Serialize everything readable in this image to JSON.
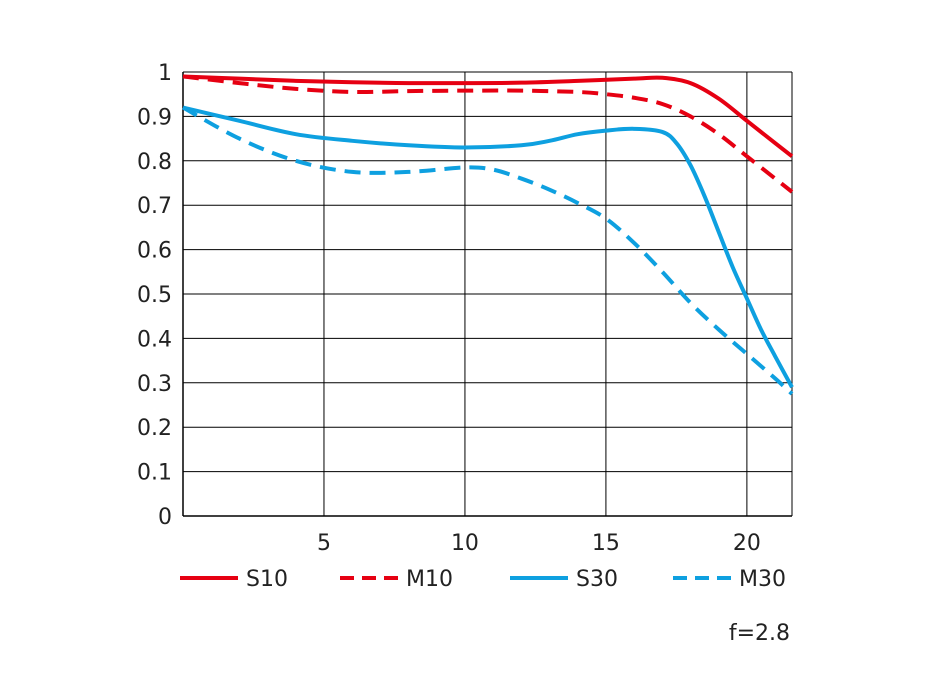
{
  "chart_data": {
    "type": "line",
    "title": "",
    "xlabel": "",
    "ylabel": "",
    "xlim": [
      0,
      21.6
    ],
    "ylim": [
      0,
      1
    ],
    "x_ticks": [
      5,
      10,
      15,
      20
    ],
    "y_ticks": [
      0,
      0.1,
      0.2,
      0.3,
      0.4,
      0.5,
      0.6,
      0.7,
      0.8,
      0.9,
      1
    ],
    "y_tick_labels": [
      "0",
      "0.1",
      "0.2",
      "0.3",
      "0.4",
      "0.5",
      "0.6",
      "0.7",
      "0.8",
      "0.9",
      "1"
    ],
    "grid": true,
    "legend_position": "bottom",
    "annotation": "f=2.8",
    "series": [
      {
        "name": "S10",
        "color": "#e60012",
        "dash": "solid",
        "points": [
          [
            0,
            0.99
          ],
          [
            2,
            0.985
          ],
          [
            4,
            0.98
          ],
          [
            6,
            0.977
          ],
          [
            8,
            0.975
          ],
          [
            10,
            0.975
          ],
          [
            12,
            0.976
          ],
          [
            14,
            0.98
          ],
          [
            16,
            0.985
          ],
          [
            17,
            0.987
          ],
          [
            18,
            0.975
          ],
          [
            19,
            0.94
          ],
          [
            20,
            0.89
          ],
          [
            21,
            0.84
          ],
          [
            21.6,
            0.81
          ]
        ]
      },
      {
        "name": "M10",
        "color": "#e60012",
        "dash": "dashed",
        "points": [
          [
            0,
            0.99
          ],
          [
            2,
            0.975
          ],
          [
            4,
            0.962
          ],
          [
            6,
            0.955
          ],
          [
            8,
            0.957
          ],
          [
            10,
            0.958
          ],
          [
            12,
            0.958
          ],
          [
            14,
            0.955
          ],
          [
            15,
            0.95
          ],
          [
            16,
            0.942
          ],
          [
            17,
            0.928
          ],
          [
            18,
            0.9
          ],
          [
            19,
            0.86
          ],
          [
            20,
            0.81
          ],
          [
            21,
            0.76
          ],
          [
            21.6,
            0.73
          ]
        ]
      },
      {
        "name": "S30",
        "color": "#0ea0e0",
        "dash": "solid",
        "points": [
          [
            0,
            0.92
          ],
          [
            2,
            0.89
          ],
          [
            4,
            0.86
          ],
          [
            6,
            0.845
          ],
          [
            8,
            0.835
          ],
          [
            10,
            0.83
          ],
          [
            12,
            0.835
          ],
          [
            13,
            0.845
          ],
          [
            14,
            0.86
          ],
          [
            15,
            0.868
          ],
          [
            16,
            0.872
          ],
          [
            17,
            0.865
          ],
          [
            17.5,
            0.84
          ],
          [
            18,
            0.79
          ],
          [
            18.5,
            0.72
          ],
          [
            19,
            0.64
          ],
          [
            19.5,
            0.56
          ],
          [
            20,
            0.49
          ],
          [
            20.5,
            0.42
          ],
          [
            21,
            0.36
          ],
          [
            21.6,
            0.29
          ]
        ]
      },
      {
        "name": "M30",
        "color": "#0ea0e0",
        "dash": "dashed",
        "points": [
          [
            0,
            0.92
          ],
          [
            2,
            0.85
          ],
          [
            4,
            0.8
          ],
          [
            6,
            0.775
          ],
          [
            8,
            0.775
          ],
          [
            10,
            0.785
          ],
          [
            11,
            0.78
          ],
          [
            12,
            0.76
          ],
          [
            13,
            0.735
          ],
          [
            14,
            0.705
          ],
          [
            15,
            0.67
          ],
          [
            16,
            0.615
          ],
          [
            17,
            0.55
          ],
          [
            18,
            0.48
          ],
          [
            19,
            0.42
          ],
          [
            20,
            0.365
          ],
          [
            21,
            0.31
          ],
          [
            21.6,
            0.275
          ]
        ]
      }
    ]
  }
}
